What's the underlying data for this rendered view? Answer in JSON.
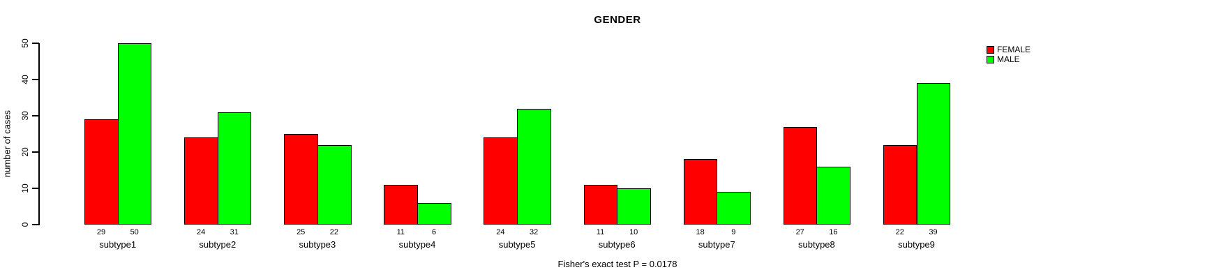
{
  "chart_data": {
    "type": "bar",
    "title": "GENDER",
    "ylabel": "number of cases",
    "xlabel": "",
    "ylim": [
      0,
      50
    ],
    "yticks": [
      0,
      10,
      20,
      30,
      40,
      50
    ],
    "grid": false,
    "legend_position": "top-right",
    "bar_value_labels_shown": true,
    "categories": [
      "subtype1",
      "subtype2",
      "subtype3",
      "subtype4",
      "subtype5",
      "subtype6",
      "subtype7",
      "subtype8",
      "subtype9"
    ],
    "series": [
      {
        "name": "FEMALE",
        "color": "#FF0000",
        "values": [
          29,
          24,
          25,
          11,
          24,
          11,
          18,
          27,
          22
        ]
      },
      {
        "name": "MALE",
        "color": "#00FF00",
        "values": [
          50,
          31,
          22,
          6,
          32,
          10,
          9,
          16,
          39
        ]
      }
    ],
    "caption": "Fisher's exact test P = 0.0178"
  },
  "colors": {
    "axis": "#000000",
    "background": "#FFFFFF",
    "female": "#FF0000",
    "male": "#00FF00"
  }
}
